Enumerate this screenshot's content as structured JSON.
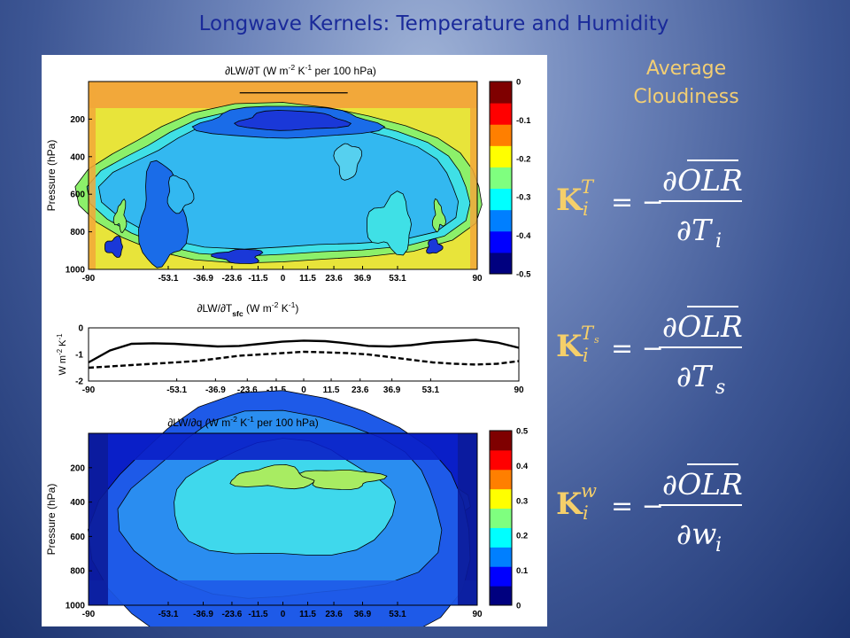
{
  "slide": {
    "title": "Longwave Kernels: Temperature and Humidity",
    "subtitle_line1": "Average",
    "subtitle_line2": "Cloudiness"
  },
  "chart_data": [
    {
      "type": "heatmap",
      "title": "∂LW/∂T (W m-2 K-1 per 100 hPa)",
      "title_parts": [
        "∂LW/∂T (W m",
        "-2",
        " K",
        "-1",
        " per 100 hPa)"
      ],
      "ylabel": "Pressure (hPa)",
      "x_ticks": [
        -90,
        -53.1,
        -36.9,
        -23.6,
        -11.5,
        0,
        11.5,
        23.6,
        36.9,
        53.1,
        90
      ],
      "x_tick_labels": [
        "-90",
        "-53.1",
        "-36.9",
        "-23.6",
        "-11.5",
        "0",
        "11.5",
        "23.6",
        "36.9",
        "53.1",
        "90"
      ],
      "y_ticks": [
        200,
        400,
        600,
        800,
        1000
      ],
      "y_tick_labels": [
        "200",
        "400",
        "600",
        "800",
        "1000"
      ],
      "ylim": [
        1000,
        0
      ],
      "colorbar": {
        "range": [
          -0.5,
          0
        ],
        "ticks": [
          0,
          -0.1,
          -0.2,
          -0.3,
          -0.4,
          -0.5
        ],
        "tick_labels": [
          "0",
          "-0.1",
          "-0.2",
          "-0.3",
          "-0.4",
          "-0.5"
        ],
        "colors": [
          "#00007f",
          "#0000ff",
          "#007fff",
          "#00ffff",
          "#7fff7f",
          "#ffff00",
          "#ff7f00",
          "#ff0000",
          "#7f0000"
        ]
      }
    },
    {
      "type": "line",
      "title": "∂LW/∂Tsfc (W m-2 K-1)",
      "title_parts": [
        "∂LW/∂T",
        "sfc",
        " (W m",
        "-2",
        " K",
        "-1",
        ")"
      ],
      "ylabel": "W m-2 K-1",
      "ylabel_parts": [
        "W m",
        "-2",
        " K",
        "-1"
      ],
      "ylim": [
        -2,
        0
      ],
      "y_ticks": [
        0,
        -1,
        -2
      ],
      "y_tick_labels": [
        "0",
        "-1",
        "-2"
      ],
      "x_ticks": [
        -90,
        -53.1,
        -36.9,
        -23.6,
        -11.5,
        0,
        11.5,
        23.6,
        36.9,
        53.1,
        90
      ],
      "x_tick_labels": [
        "-90",
        "-53.1",
        "-36.9",
        "-23.6",
        "-11.5",
        "0",
        "11.5",
        "23.6",
        "36.9",
        "53.1",
        "90"
      ],
      "x": [
        -90,
        -81,
        -72,
        -63,
        -54,
        -45,
        -36,
        -27,
        -18,
        -9,
        0,
        9,
        18,
        27,
        36,
        45,
        54,
        63,
        72,
        81,
        90
      ],
      "series": [
        {
          "style": "solid",
          "values": [
            -1.3,
            -0.85,
            -0.6,
            -0.58,
            -0.6,
            -0.65,
            -0.7,
            -0.68,
            -0.6,
            -0.52,
            -0.48,
            -0.5,
            -0.58,
            -0.68,
            -0.7,
            -0.65,
            -0.55,
            -0.5,
            -0.45,
            -0.55,
            -0.75
          ]
        },
        {
          "style": "dashed",
          "values": [
            -1.5,
            -1.45,
            -1.4,
            -1.35,
            -1.3,
            -1.25,
            -1.15,
            -1.05,
            -1.0,
            -0.95,
            -0.9,
            -0.92,
            -0.95,
            -1.0,
            -1.1,
            -1.2,
            -1.3,
            -1.35,
            -1.38,
            -1.35,
            -1.25
          ]
        }
      ]
    },
    {
      "type": "heatmap",
      "title": "∂LW/∂q (W m-2 K-1 per 100 hPa)",
      "title_parts": [
        "∂LW/∂q (W m",
        "-2",
        " K",
        "-1",
        " per 100 hPa)"
      ],
      "ylabel": "Pressure (hPa)",
      "x_ticks": [
        -90,
        -53.1,
        -36.9,
        -23.6,
        -11.5,
        0,
        11.5,
        23.6,
        36.9,
        53.1,
        90
      ],
      "x_tick_labels": [
        "-90",
        "-53.1",
        "-36.9",
        "-23.6",
        "-11.5",
        "0",
        "11.5",
        "23.6",
        "36.9",
        "53.1",
        "90"
      ],
      "y_ticks": [
        200,
        400,
        600,
        800,
        1000
      ],
      "y_tick_labels": [
        "200",
        "400",
        "600",
        "800",
        "1000"
      ],
      "ylim": [
        1000,
        0
      ],
      "colorbar": {
        "range": [
          0,
          0.5
        ],
        "ticks": [
          0.5,
          0.4,
          0.3,
          0.2,
          0.1,
          0
        ],
        "tick_labels": [
          "0.5",
          "0.4",
          "0.3",
          "0.2",
          "0.1",
          "0"
        ],
        "colors": [
          "#00007f",
          "#0000ff",
          "#007fff",
          "#00ffff",
          "#7fff7f",
          "#ffff00",
          "#ff7f00",
          "#ff0000",
          "#7f0000"
        ]
      }
    }
  ],
  "equations": [
    {
      "name": "K_i^T",
      "lhs_base": "K",
      "lhs_sub": "i",
      "lhs_sup": "T",
      "lhs_sup_sub": "",
      "eq": "= −",
      "numerator": "∂OLR",
      "overline": "OLR",
      "denominator_d": "∂",
      "denominator_var": "T",
      "denominator_sub": "i"
    },
    {
      "name": "K_i^Ts",
      "lhs_base": "K",
      "lhs_sub": "i",
      "lhs_sup": "T",
      "lhs_sup_sub": "s",
      "eq": "= −",
      "numerator": "∂OLR",
      "overline": "OLR",
      "denominator_d": "∂",
      "denominator_var": "T",
      "denominator_sub": "s"
    },
    {
      "name": "K_i^w",
      "lhs_base": "K",
      "lhs_sub": "i",
      "lhs_sup": "w",
      "lhs_sup_sub": "",
      "eq": "= −",
      "numerator": "∂OLR",
      "overline": "OLR",
      "denominator_d": "∂",
      "denominator_var": "w",
      "denominator_sub": "i"
    }
  ]
}
